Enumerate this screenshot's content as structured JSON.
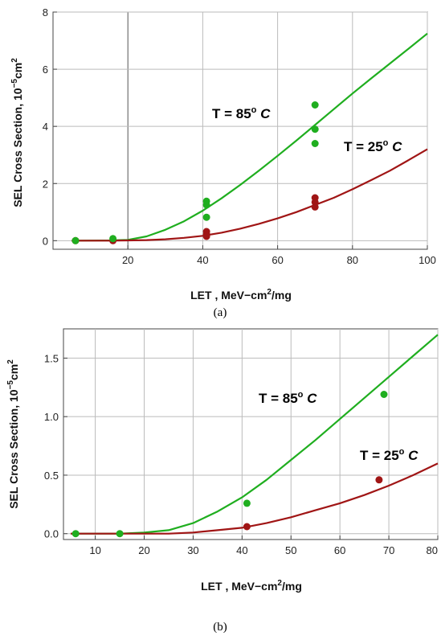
{
  "chart_data": [
    {
      "type": "scatter",
      "panel_caption": "(a)",
      "xlabel": "LET , MeV−cm<sup>2</sup>/mg",
      "xlabel_parts": [
        "LET , MeV−cm",
        "2",
        "/mg"
      ],
      "ylabel_parts": [
        "SEL Cross Section, 10",
        "−5",
        "cm",
        "2"
      ],
      "xlim": [
        0,
        100
      ],
      "ylim": [
        -0.3,
        8
      ],
      "xticks": [
        20,
        40,
        60,
        80,
        100
      ],
      "yticks": [
        0,
        2,
        4,
        6,
        8
      ],
      "grid": true,
      "series": [
        {
          "annotation_parts": [
            "T = 85",
            "o",
            " C"
          ],
          "color": "#1fae1f",
          "points": [
            [
              6,
              0.0
            ],
            [
              16,
              0.07
            ],
            [
              41,
              1.38
            ],
            [
              41,
              1.25
            ],
            [
              41,
              0.82
            ],
            [
              70,
              4.75
            ],
            [
              70,
              3.9
            ],
            [
              70,
              3.4
            ]
          ],
          "fit": [
            [
              5,
              0.0
            ],
            [
              15,
              0.01
            ],
            [
              20,
              0.03
            ],
            [
              25,
              0.15
            ],
            [
              30,
              0.38
            ],
            [
              35,
              0.68
            ],
            [
              40,
              1.05
            ],
            [
              45,
              1.48
            ],
            [
              50,
              1.95
            ],
            [
              55,
              2.45
            ],
            [
              60,
              2.97
            ],
            [
              65,
              3.5
            ],
            [
              70,
              4.05
            ],
            [
              75,
              4.6
            ],
            [
              80,
              5.15
            ],
            [
              85,
              5.68
            ],
            [
              90,
              6.2
            ],
            [
              95,
              6.72
            ],
            [
              100,
              7.25
            ]
          ]
        },
        {
          "annotation_parts": [
            "T = 25",
            "o",
            " C"
          ],
          "color": "#a01515",
          "points": [
            [
              6,
              0.0
            ],
            [
              16,
              0.0
            ],
            [
              41,
              0.32
            ],
            [
              41,
              0.22
            ],
            [
              41,
              0.15
            ],
            [
              70,
              1.5
            ],
            [
              70,
              1.35
            ],
            [
              70,
              1.18
            ]
          ],
          "fit": [
            [
              5,
              0.0
            ],
            [
              15,
              0.0
            ],
            [
              20,
              0.01
            ],
            [
              25,
              0.02
            ],
            [
              30,
              0.05
            ],
            [
              35,
              0.1
            ],
            [
              40,
              0.17
            ],
            [
              45,
              0.28
            ],
            [
              50,
              0.42
            ],
            [
              55,
              0.59
            ],
            [
              60,
              0.78
            ],
            [
              65,
              1.0
            ],
            [
              70,
              1.25
            ],
            [
              75,
              1.5
            ],
            [
              80,
              1.8
            ],
            [
              85,
              2.12
            ],
            [
              90,
              2.45
            ],
            [
              95,
              2.82
            ],
            [
              100,
              3.2
            ]
          ]
        }
      ]
    },
    {
      "type": "scatter",
      "panel_caption": "(b)",
      "xlabel_parts": [
        "LET , MeV−cm",
        "2",
        "/mg"
      ],
      "ylabel_parts": [
        "SEL Cross Section, 10",
        "−5",
        "cm",
        "2"
      ],
      "xlim": [
        3.5,
        80
      ],
      "ylim": [
        -0.05,
        1.75
      ],
      "xticks": [
        10,
        20,
        30,
        40,
        50,
        60,
        70,
        80
      ],
      "xtick_labels": [
        "10",
        "20",
        "30",
        "40",
        "50",
        "60",
        "70",
        "80"
      ],
      "yticks": [
        0.0,
        0.5,
        1.0,
        1.5
      ],
      "ytick_labels": [
        "0.0",
        "0.5",
        "1.0",
        "1.5"
      ],
      "grid": true,
      "series": [
        {
          "annotation_parts": [
            "T = 85",
            "o",
            " C"
          ],
          "color": "#1fae1f",
          "points": [
            [
              6,
              0.0
            ],
            [
              15,
              0.0
            ],
            [
              41,
              0.26
            ],
            [
              69,
              1.19
            ]
          ],
          "fit": [
            [
              5,
              0.0
            ],
            [
              10,
              0.0
            ],
            [
              15,
              0.0
            ],
            [
              20,
              0.01
            ],
            [
              25,
              0.03
            ],
            [
              30,
              0.09
            ],
            [
              35,
              0.19
            ],
            [
              40,
              0.31
            ],
            [
              45,
              0.46
            ],
            [
              50,
              0.63
            ],
            [
              55,
              0.8
            ],
            [
              60,
              0.98
            ],
            [
              65,
              1.16
            ],
            [
              70,
              1.34
            ],
            [
              75,
              1.52
            ],
            [
              80,
              1.7
            ]
          ]
        },
        {
          "annotation_parts": [
            "T = 25",
            "o",
            " C"
          ],
          "color": "#a01515",
          "points": [
            [
              41,
              0.06
            ],
            [
              68,
              0.46
            ]
          ],
          "fit": [
            [
              5,
              0.0
            ],
            [
              15,
              0.0
            ],
            [
              20,
              0.0
            ],
            [
              25,
              0.0
            ],
            [
              30,
              0.01
            ],
            [
              35,
              0.03
            ],
            [
              40,
              0.05
            ],
            [
              45,
              0.09
            ],
            [
              50,
              0.14
            ],
            [
              55,
              0.2
            ],
            [
              60,
              0.26
            ],
            [
              65,
              0.33
            ],
            [
              70,
              0.41
            ],
            [
              75,
              0.5
            ],
            [
              80,
              0.6
            ]
          ]
        }
      ]
    }
  ]
}
